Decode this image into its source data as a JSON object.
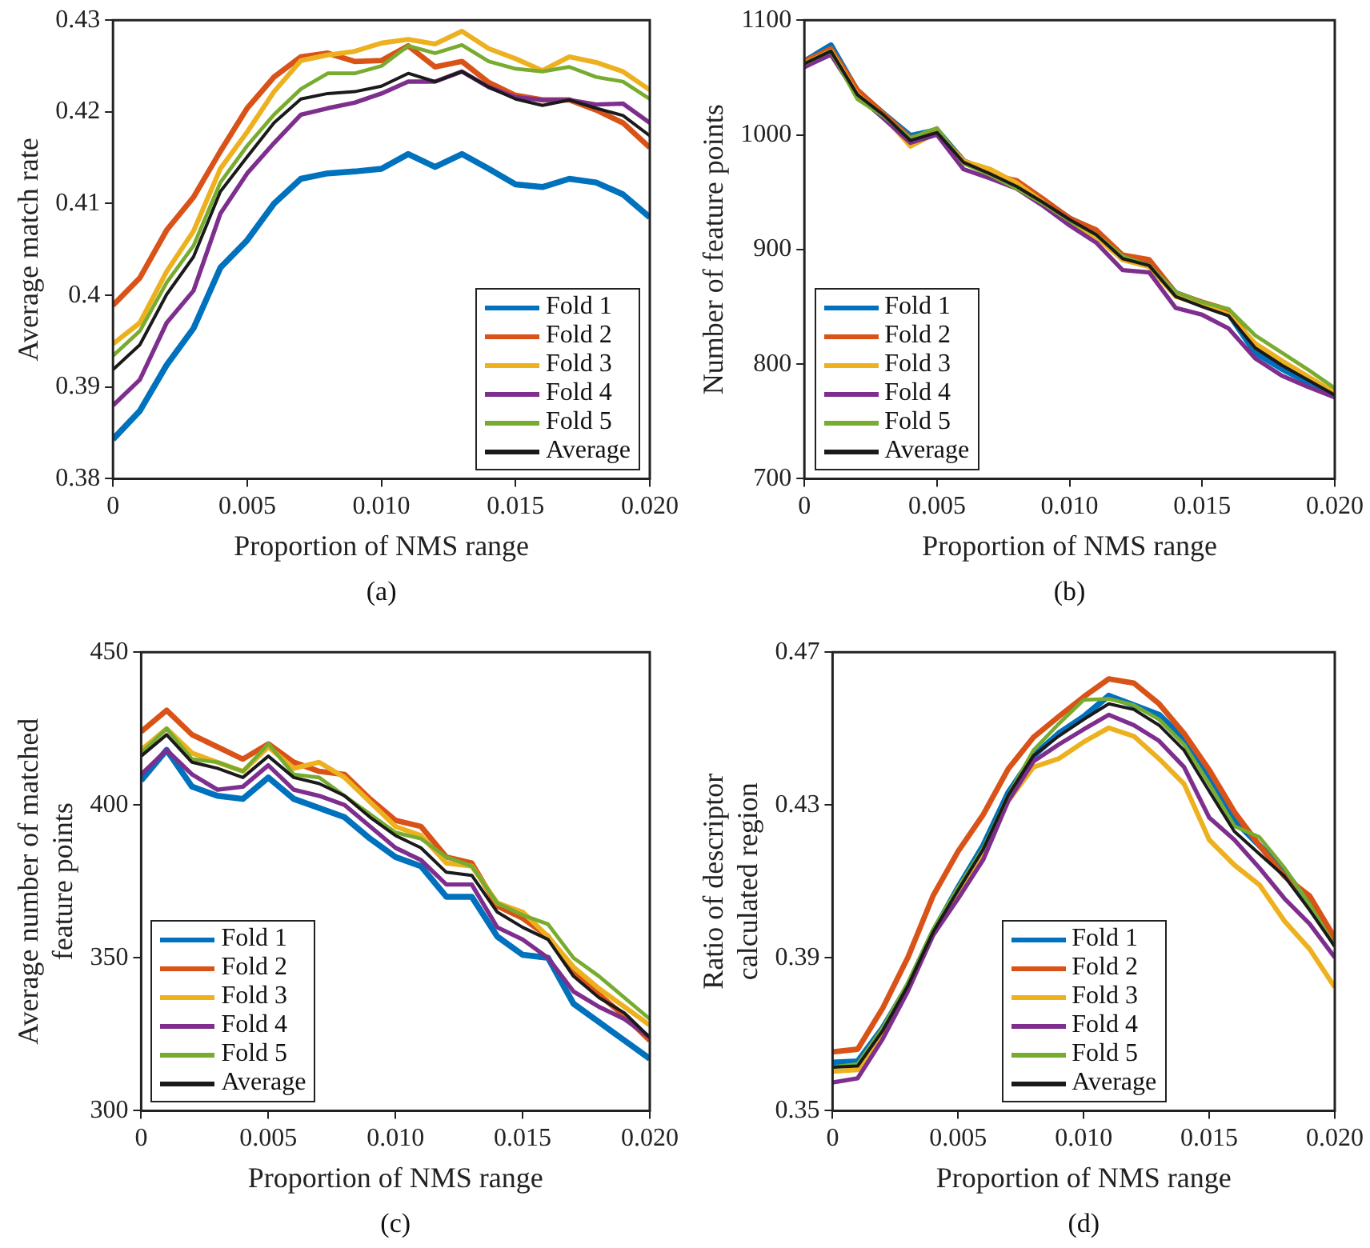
{
  "chart_data": [
    {
      "type": "line",
      "xlabel": "Proportion of NMS range",
      "ylabel": "Average match rate",
      "annotations": [
        "(a)"
      ],
      "legend": "bottom right",
      "marker": "none",
      "x": [
        0,
        0.001,
        0.002,
        0.003,
        0.004,
        0.005,
        0.006,
        0.007,
        0.008,
        0.009,
        0.01,
        0.011,
        0.012,
        0.013,
        0.014,
        0.015,
        0.016,
        0.017,
        0.018,
        0.019,
        0.02
      ],
      "xlim": [
        0,
        0.02
      ],
      "xticks": [
        {
          "value": 0,
          "label": "0"
        },
        {
          "value": 0.005,
          "label": "0.005"
        },
        {
          "value": 0.01,
          "label": "0.010"
        },
        {
          "value": 0.015,
          "label": "0.015"
        },
        {
          "value": 0.02,
          "label": "0.020"
        }
      ],
      "ylim": [
        0.38,
        0.43
      ],
      "yticks": [
        0.38,
        0.39,
        0.4,
        0.41,
        0.42,
        0.43
      ],
      "series": [
        {
          "name": "Fold 1",
          "color": "#0072bd",
          "values": [
            0.3843,
            0.3874,
            0.3924,
            0.3964,
            0.403,
            0.406,
            0.41,
            0.4127,
            0.4133,
            0.4135,
            0.4138,
            0.4154,
            0.414,
            0.4154,
            0.4138,
            0.4121,
            0.4118,
            0.4127,
            0.4123,
            0.411,
            0.4085
          ]
        },
        {
          "name": "Fold 2",
          "color": "#d95319",
          "values": [
            0.3989,
            0.4019,
            0.4071,
            0.4107,
            0.4157,
            0.4204,
            0.4238,
            0.426,
            0.4264,
            0.4255,
            0.4256,
            0.4272,
            0.4249,
            0.4255,
            0.4232,
            0.4218,
            0.4213,
            0.4213,
            0.4202,
            0.4188,
            0.4161
          ]
        },
        {
          "name": "Fold 3",
          "color": "#edb120",
          "values": [
            0.3947,
            0.397,
            0.4026,
            0.407,
            0.4138,
            0.4178,
            0.4222,
            0.4256,
            0.4262,
            0.4266,
            0.4275,
            0.4279,
            0.4274,
            0.4288,
            0.4269,
            0.4258,
            0.4245,
            0.426,
            0.4254,
            0.4244,
            0.4224
          ]
        },
        {
          "name": "Fold 4",
          "color": "#7e2f8e",
          "values": [
            0.388,
            0.3908,
            0.397,
            0.4005,
            0.4089,
            0.4133,
            0.4166,
            0.4197,
            0.4204,
            0.421,
            0.422,
            0.4233,
            0.4233,
            0.4244,
            0.4227,
            0.4216,
            0.4213,
            0.4213,
            0.4208,
            0.4209,
            0.4188
          ]
        },
        {
          "name": "Fold 5",
          "color": "#77ac30",
          "values": [
            0.3934,
            0.3961,
            0.4014,
            0.4054,
            0.4123,
            0.4163,
            0.4197,
            0.4225,
            0.4242,
            0.4242,
            0.425,
            0.4272,
            0.4264,
            0.4273,
            0.4255,
            0.4247,
            0.4244,
            0.4249,
            0.4238,
            0.4233,
            0.4214
          ]
        },
        {
          "name": "Average",
          "color": "#1a1a1a",
          "values": [
            0.3919,
            0.3946,
            0.4001,
            0.4042,
            0.4113,
            0.4151,
            0.4188,
            0.4214,
            0.422,
            0.4222,
            0.4228,
            0.4242,
            0.4233,
            0.4244,
            0.4227,
            0.4214,
            0.4207,
            0.4213,
            0.4204,
            0.4196,
            0.4174
          ]
        }
      ]
    },
    {
      "type": "line",
      "xlabel": "Proportion of NMS range",
      "ylabel": "Number of feature points",
      "annotations": [
        "(b)"
      ],
      "legend": "bottom left",
      "marker": "none",
      "x": [
        0,
        0.001,
        0.002,
        0.003,
        0.004,
        0.005,
        0.006,
        0.007,
        0.008,
        0.009,
        0.01,
        0.011,
        0.012,
        0.013,
        0.014,
        0.015,
        0.016,
        0.017,
        0.018,
        0.019,
        0.02
      ],
      "xlim": [
        0,
        0.02
      ],
      "xticks": [
        {
          "value": 0,
          "label": "0"
        },
        {
          "value": 0.005,
          "label": "0.005"
        },
        {
          "value": 0.01,
          "label": "0.010"
        },
        {
          "value": 0.015,
          "label": "0.015"
        },
        {
          "value": 0.02,
          "label": "0.020"
        }
      ],
      "ylim": [
        700,
        1100
      ],
      "yticks": [
        700,
        800,
        900,
        1000,
        1100
      ],
      "series": [
        {
          "name": "Fold 1",
          "color": "#0072bd",
          "values": [
            1064,
            1078,
            1038,
            1018,
            999,
            1004,
            977,
            967,
            958,
            943,
            927,
            916,
            894,
            887,
            862,
            853,
            844,
            810,
            796,
            784,
            772
          ]
        },
        {
          "name": "Fold 2",
          "color": "#d95319",
          "values": [
            1064,
            1075,
            1039,
            1018,
            997,
            1003,
            977,
            965,
            960,
            944,
            927,
            917,
            895,
            891,
            862,
            854,
            847,
            815,
            801,
            null,
            null
          ]
        },
        {
          "name": "Fold 3",
          "color": "#edb120",
          "values": [
            1062,
            1073,
            1035,
            1016,
            990,
            1002,
            977,
            970,
            958,
            941,
            923,
            911,
            891,
            885,
            859,
            852,
            843,
            818,
            803,
            789,
            775
          ]
        },
        {
          "name": "Fold 4",
          "color": "#7e2f8e",
          "values": [
            1059,
            1070,
            1034,
            1014,
            993,
            1000,
            970,
            962,
            953,
            938,
            921,
            906,
            882,
            880,
            849,
            843,
            831,
            805,
            790,
            780,
            771
          ]
        },
        {
          "name": "Fold 5",
          "color": "#77ac30",
          "values": [
            1062,
            1073,
            1031,
            1016,
            997,
            1006,
            975,
            965,
            953,
            940,
            925,
            913,
            894,
            886,
            863,
            854,
            848,
            825,
            810,
            795,
            779
          ]
        },
        {
          "name": "Average",
          "color": "#1a1a1a",
          "values": [
            1062,
            1073,
            1035,
            1017,
            995,
            1002,
            976,
            966,
            955,
            941,
            926,
            913,
            892,
            886,
            859,
            850,
            842,
            814,
            799,
            786,
            773
          ]
        }
      ]
    },
    {
      "type": "line",
      "xlabel": "Proportion of NMS range",
      "ylabel": "Average number of matched feature points",
      "annotations": [
        "(c)"
      ],
      "legend": "bottom left",
      "marker": "none",
      "x": [
        0,
        0.001,
        0.002,
        0.003,
        0.004,
        0.005,
        0.006,
        0.007,
        0.008,
        0.009,
        0.01,
        0.011,
        0.012,
        0.013,
        0.014,
        0.015,
        0.016,
        0.017,
        0.018,
        0.019,
        0.02
      ],
      "xlim": [
        0,
        0.02
      ],
      "xticks": [
        {
          "value": 0,
          "label": "0"
        },
        {
          "value": 0.005,
          "label": "0.005"
        },
        {
          "value": 0.01,
          "label": "0.010"
        },
        {
          "value": 0.015,
          "label": "0.015"
        },
        {
          "value": 0.02,
          "label": "0.020"
        }
      ],
      "ylim": [
        300,
        450
      ],
      "yticks": [
        300,
        350,
        400,
        450
      ],
      "series": [
        {
          "name": "Fold 1",
          "color": "#0072bd",
          "values": [
            408,
            418,
            406,
            403,
            402,
            409,
            402,
            399,
            396,
            389,
            383,
            380,
            370,
            370,
            357,
            351,
            350,
            335,
            329,
            323,
            317
          ]
        },
        {
          "name": "Fold 2",
          "color": "#d95319",
          "values": [
            424,
            431,
            423,
            419,
            415,
            420,
            414,
            411,
            410,
            402,
            395,
            393,
            383,
            381,
            367,
            363,
            357,
            345,
            338,
            331,
            323
          ]
        },
        {
          "name": "Fold 3",
          "color": "#edb120",
          "values": [
            418,
            425,
            417,
            414,
            411,
            419,
            412,
            414,
            409,
            401,
            393,
            390,
            381,
            380,
            368,
            365,
            357,
            347,
            340,
            334,
            328
          ]
        },
        {
          "name": "Fold 4",
          "color": "#7e2f8e",
          "values": [
            410,
            418,
            410,
            405,
            406,
            413,
            405,
            403,
            400,
            393,
            386,
            382,
            374,
            374,
            360,
            356,
            350,
            339,
            334,
            330,
            324
          ]
        },
        {
          "name": "Fold 5",
          "color": "#77ac30",
          "values": [
            417,
            425,
            415,
            414,
            411,
            420,
            410,
            409,
            403,
            397,
            391,
            389,
            383,
            380,
            368,
            364,
            361,
            350,
            344,
            337,
            330
          ]
        },
        {
          "name": "Average",
          "color": "#1a1a1a",
          "values": [
            416,
            423,
            414,
            412,
            409,
            416,
            409,
            407,
            403,
            396,
            390,
            386,
            378,
            377,
            365,
            360,
            356,
            344,
            337,
            332,
            324
          ]
        }
      ]
    },
    {
      "type": "line",
      "xlabel": "Proportion of NMS range",
      "ylabel": "Ratio of descriptor calculated region",
      "annotations": [
        "(d)"
      ],
      "legend": "bottom",
      "marker": "none",
      "x": [
        0,
        0.001,
        0.002,
        0.003,
        0.004,
        0.005,
        0.006,
        0.007,
        0.008,
        0.009,
        0.01,
        0.011,
        0.012,
        0.013,
        0.014,
        0.015,
        0.016,
        0.017,
        0.018,
        0.019,
        0.02
      ],
      "xlim": [
        0,
        0.02
      ],
      "xticks": [
        {
          "value": 0,
          "label": "0"
        },
        {
          "value": 0.005,
          "label": "0.005"
        },
        {
          "value": 0.01,
          "label": "0.010"
        },
        {
          "value": 0.015,
          "label": "0.015"
        },
        {
          "value": 0.02,
          "label": "0.020"
        }
      ],
      "ylim": [
        0.35,
        0.47
      ],
      "yticks": [
        0.35,
        0.39,
        0.43,
        0.47
      ],
      "series": [
        {
          "name": "Fold 1",
          "color": "#0072bd",
          "values": [
            0.3626,
            0.3629,
            0.3717,
            0.3827,
            0.3967,
            0.4084,
            0.4194,
            0.4333,
            0.4429,
            0.4487,
            0.4531,
            0.4586,
            0.4561,
            0.4536,
            0.4473,
            0.437,
            0.426,
            0.4194,
            0.4128,
            0.404,
            0.3937
          ]
        },
        {
          "name": "Fold 2",
          "color": "#d95319",
          "values": [
            0.3654,
            0.3661,
            0.3769,
            0.3901,
            0.4062,
            0.4179,
            0.4275,
            0.4395,
            0.4477,
            0.4531,
            0.4583,
            0.463,
            0.4619,
            0.4565,
            0.4487,
            0.4392,
            0.4282,
            0.4194,
            0.4113,
            0.4062,
            0.3952
          ]
        },
        {
          "name": "Fold 3",
          "color": "#edb120",
          "values": [
            0.3603,
            0.3607,
            0.3703,
            0.382,
            0.3959,
            0.4069,
            0.4179,
            0.4311,
            0.4399,
            0.4421,
            0.4465,
            0.4502,
            0.448,
            0.4421,
            0.4355,
            0.4209,
            0.4143,
            0.4091,
            0.3996,
            0.3923,
            0.3823
          ]
        },
        {
          "name": "Fold 4",
          "color": "#7e2f8e",
          "values": [
            0.3574,
            0.3585,
            0.3688,
            0.3813,
            0.3959,
            0.4055,
            0.4157,
            0.4311,
            0.4414,
            0.4458,
            0.4498,
            0.4536,
            0.4509,
            0.4468,
            0.4399,
            0.4267,
            0.4209,
            0.4135,
            0.4055,
            0.3989,
            0.3901
          ]
        },
        {
          "name": "Fold 5",
          "color": "#77ac30",
          "values": [
            0.3614,
            0.3622,
            0.3717,
            0.3835,
            0.3974,
            0.4084,
            0.4187,
            0.4326,
            0.4443,
            0.4512,
            0.4575,
            0.4578,
            0.4561,
            0.4524,
            0.4458,
            0.4355,
            0.4245,
            0.4216,
            0.4135,
            0.404,
            0.393
          ]
        },
        {
          "name": "Average",
          "color": "#1a1a1a",
          "values": [
            0.3614,
            0.3617,
            0.371,
            0.3827,
            0.3967,
            0.4077,
            0.4184,
            0.4326,
            0.4429,
            0.448,
            0.4524,
            0.4565,
            0.455,
            0.4509,
            0.4443,
            0.4336,
            0.4231,
            0.4172,
            0.4113,
            0.4025,
            0.393
          ]
        }
      ]
    }
  ]
}
